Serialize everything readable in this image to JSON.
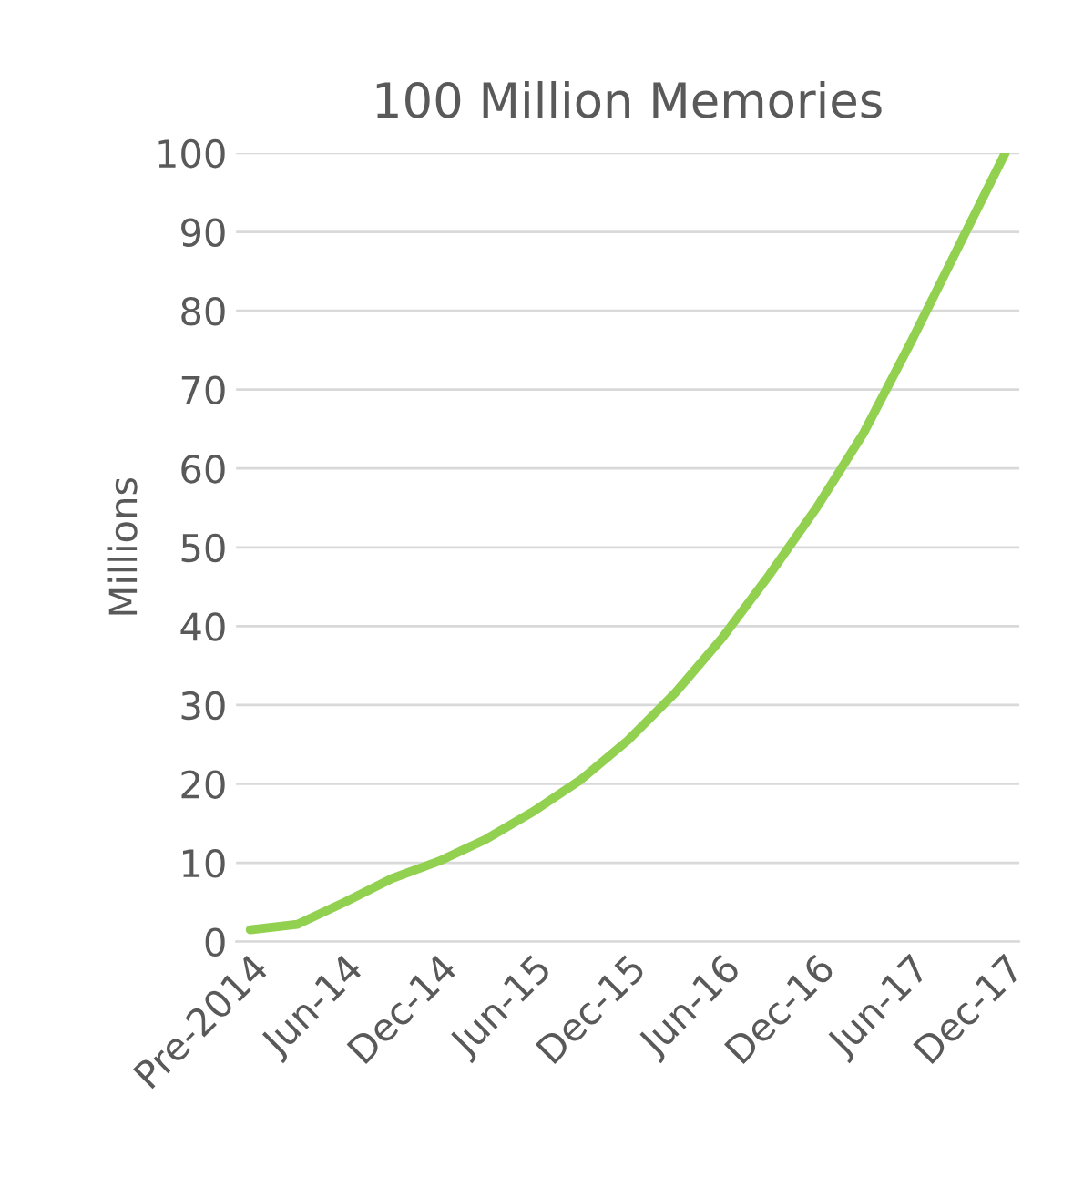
{
  "chart_data": {
    "type": "line",
    "title": "100 Million Memories",
    "ylabel": "Millions",
    "categories": [
      "Pre-2014",
      null,
      "Jun-14",
      null,
      "Dec-14",
      null,
      "Jun-15",
      null,
      "Dec-15",
      null,
      "Jun-16",
      null,
      "Dec-16",
      null,
      "Jun-17",
      null,
      "Dec-17"
    ],
    "series": [
      {
        "color": "#92d050",
        "values": [
          1.5,
          2.2,
          5,
          8,
          10.2,
          13,
          16.5,
          20.5,
          25.5,
          31.5,
          38.5,
          46.5,
          55,
          64.5,
          76,
          88,
          100
        ]
      }
    ],
    "ylim": [
      0,
      100
    ],
    "yticks": [
      0,
      10,
      20,
      30,
      40,
      50,
      60,
      70,
      80,
      90,
      100
    ],
    "grid": "y",
    "marker": "none",
    "line_style": "solid",
    "legend": false
  }
}
